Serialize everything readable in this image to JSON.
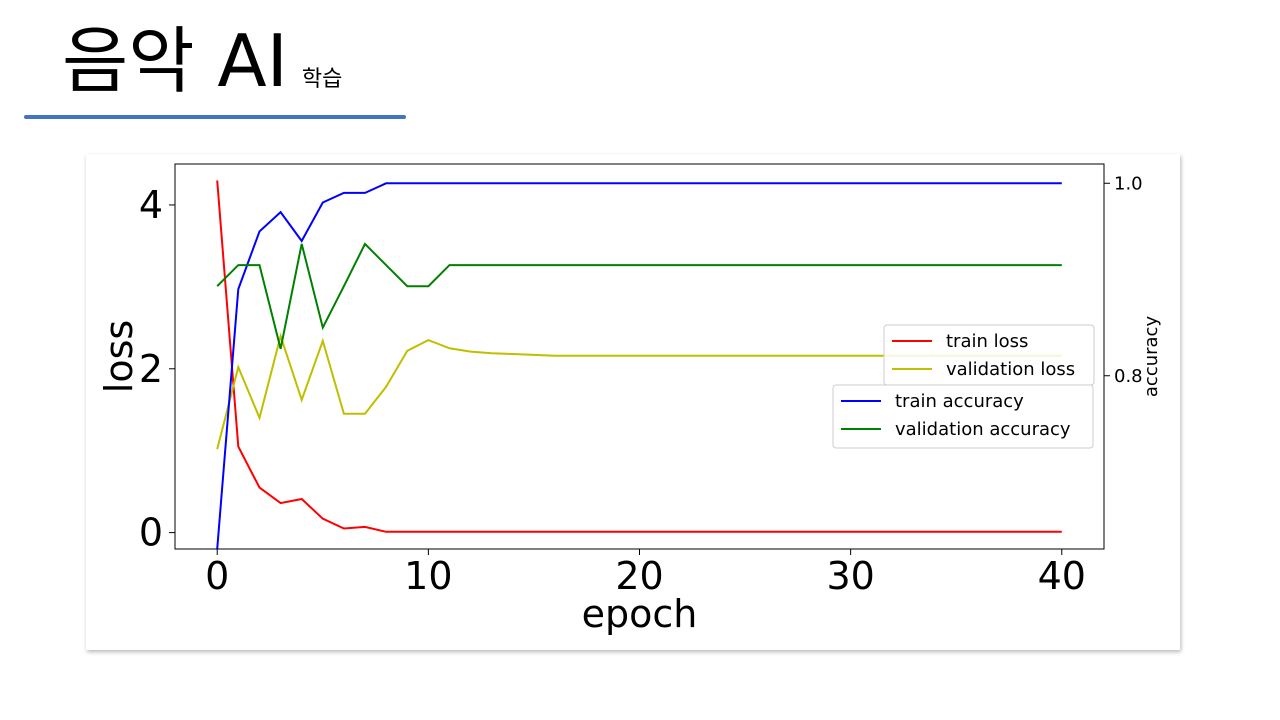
{
  "slide": {
    "title": "음악 AI",
    "subtitle": "학습"
  },
  "colors": {
    "underline": "#4472c4",
    "train_loss": "#ff0000",
    "validation_loss": "#bfbf00",
    "train_accuracy": "#0000ff",
    "validation_accuracy": "#008000"
  },
  "chart_data": {
    "type": "line",
    "xlabel": "epoch",
    "ylabel_left": "loss",
    "ylabel_right": "accuracy",
    "x": [
      0,
      1,
      2,
      3,
      4,
      5,
      6,
      7,
      8,
      9,
      10,
      11,
      12,
      13,
      14,
      15,
      16,
      17,
      18,
      19,
      20,
      21,
      22,
      23,
      24,
      25,
      26,
      27,
      28,
      29,
      30,
      31,
      32,
      33,
      34,
      35,
      36,
      37,
      38,
      39,
      40
    ],
    "xlim": [
      -2,
      42
    ],
    "xticks": [
      0,
      10,
      20,
      30,
      40
    ],
    "ylim_left": [
      -0.2,
      4.5
    ],
    "yticks_left": [
      0,
      2,
      4
    ],
    "ylim_right": [
      0.62,
      1.02
    ],
    "yticks_right": [
      0.8,
      1.0
    ],
    "yticklabels_right": [
      "0.8",
      "1.0"
    ],
    "grid": false,
    "series": [
      {
        "name": "train loss",
        "axis": "left",
        "color": "#ff0000",
        "values": [
          4.3,
          1.05,
          0.55,
          0.36,
          0.41,
          0.17,
          0.05,
          0.07,
          0.01,
          0.01,
          0.01,
          0.01,
          0.01,
          0.01,
          0.01,
          0.01,
          0.01,
          0.01,
          0.01,
          0.01,
          0.01,
          0.01,
          0.01,
          0.01,
          0.01,
          0.01,
          0.01,
          0.01,
          0.01,
          0.01,
          0.01,
          0.01,
          0.01,
          0.01,
          0.01,
          0.01,
          0.01,
          0.01,
          0.01,
          0.01,
          0.01
        ]
      },
      {
        "name": "validation loss",
        "axis": "left",
        "color": "#bfbf00",
        "values": [
          1.02,
          2.02,
          1.4,
          2.4,
          1.62,
          2.34,
          1.45,
          1.45,
          1.78,
          2.22,
          2.35,
          2.25,
          2.21,
          2.19,
          2.18,
          2.17,
          2.16,
          2.16,
          2.16,
          2.16,
          2.16,
          2.16,
          2.16,
          2.16,
          2.16,
          2.16,
          2.16,
          2.16,
          2.16,
          2.16,
          2.16,
          2.16,
          2.16,
          2.16,
          2.16,
          2.16,
          2.16,
          2.16,
          2.16,
          2.16,
          2.16
        ]
      },
      {
        "name": "train accuracy",
        "axis": "right",
        "color": "#0000ff",
        "values": [
          0.62,
          0.89,
          0.95,
          0.97,
          0.94,
          0.98,
          0.99,
          0.99,
          1.0,
          1.0,
          1.0,
          1.0,
          1.0,
          1.0,
          1.0,
          1.0,
          1.0,
          1.0,
          1.0,
          1.0,
          1.0,
          1.0,
          1.0,
          1.0,
          1.0,
          1.0,
          1.0,
          1.0,
          1.0,
          1.0,
          1.0,
          1.0,
          1.0,
          1.0,
          1.0,
          1.0,
          1.0,
          1.0,
          1.0,
          1.0,
          1.0
        ]
      },
      {
        "name": "validation accuracy",
        "axis": "right",
        "color": "#008000",
        "values": [
          0.893,
          0.915,
          0.915,
          0.828,
          0.937,
          0.85,
          0.893,
          0.937,
          0.915,
          0.893,
          0.893,
          0.915,
          0.915,
          0.915,
          0.915,
          0.915,
          0.915,
          0.915,
          0.915,
          0.915,
          0.915,
          0.915,
          0.915,
          0.915,
          0.915,
          0.915,
          0.915,
          0.915,
          0.915,
          0.915,
          0.915,
          0.915,
          0.915,
          0.915,
          0.915,
          0.915,
          0.915,
          0.915,
          0.915,
          0.915,
          0.915
        ]
      }
    ],
    "legends": [
      {
        "placement": "center-right",
        "entries": [
          "train loss",
          "validation loss"
        ]
      },
      {
        "placement": "center-right-lower",
        "entries": [
          "train accuracy",
          "validation accuracy"
        ]
      }
    ]
  }
}
